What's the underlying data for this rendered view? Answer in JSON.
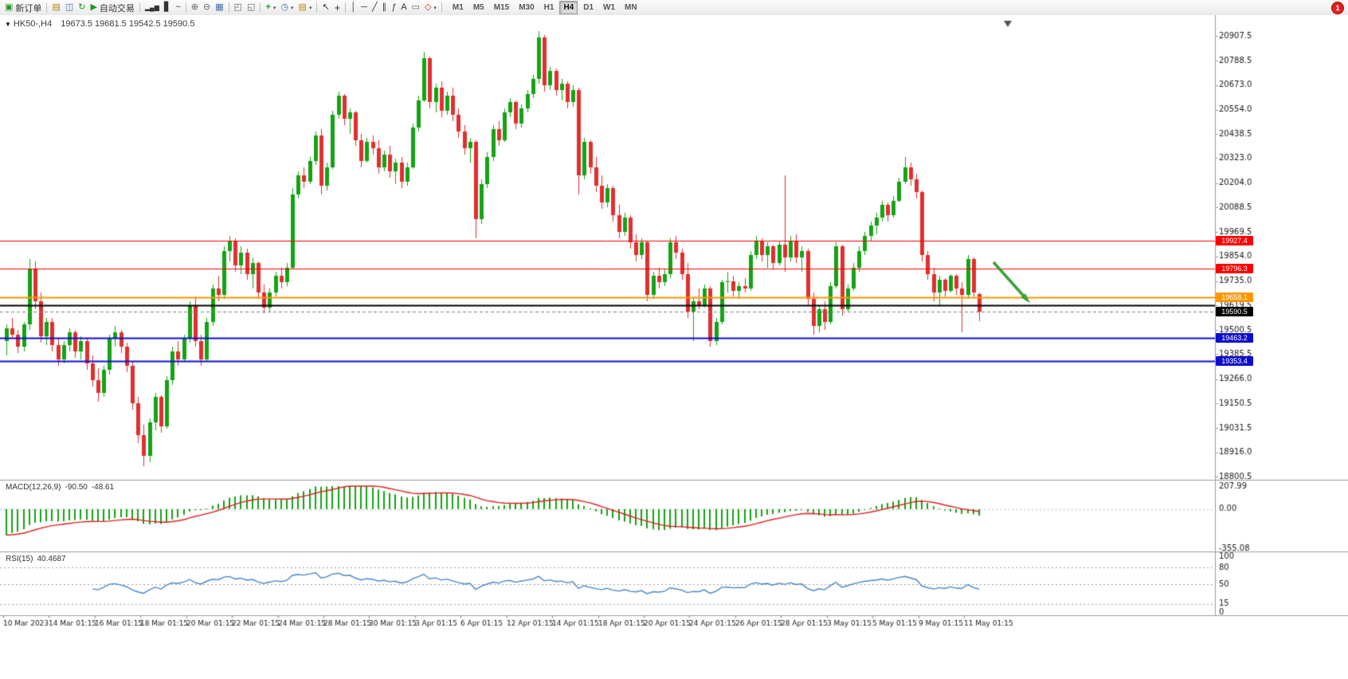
{
  "toolbar": {
    "new_order_label": "新订单",
    "auto_trading_label": "自动交易",
    "timeframes": [
      "M1",
      "M5",
      "M15",
      "M30",
      "H1",
      "H4",
      "D1",
      "W1",
      "MN"
    ],
    "active_timeframe": "H4",
    "notification_badge": "1",
    "icons": {
      "collapse": "▼",
      "new_order": "▣",
      "charts": "▤",
      "profiles": "◫",
      "refresh": "↻",
      "auto_play": "▶",
      "bars_chart": "▂▄▆",
      "candles_chart": "▋",
      "line_chart": "~",
      "zoom_in": "⊕",
      "zoom_out": "⊖",
      "tile_windows": "▦",
      "cascade_windows": "◰",
      "arrange_windows": "◱",
      "indicators": "+",
      "periods": "◷",
      "templates": "▤",
      "cursor": "↖",
      "crosshair": "+",
      "vertical_line": "│",
      "horizontal_line": "─",
      "trendline": "╱",
      "channel": "∥",
      "fibonacci": "ƒ",
      "text": "A",
      "text_label": "▭",
      "shapes": "◇",
      "dropdown": "▾"
    }
  },
  "chart": {
    "title_symbol": "HK50-,H4",
    "title_ohlc": "19673.5 19681.5 19542.5 19590.5",
    "colors": {
      "up": "#14a314",
      "down": "#e02f2f",
      "macd_hist": "#14a314",
      "macd_signal": "#e01f1f",
      "rsi_line": "#4a86c8",
      "bid_line": "#808080",
      "separator": "#9c9c9c",
      "axis_text": "#1a1a1a",
      "arrow": "#39a039"
    },
    "price_axis": {
      "max": 20907.5,
      "min": 18800.5,
      "labels": [
        20907.5,
        20788.5,
        20673.0,
        20554.0,
        20438.5,
        20323.0,
        20204.0,
        20088.5,
        19969.5,
        19854.0,
        19735.0,
        19619.5,
        19500.5,
        19385.5,
        19266.0,
        19150.5,
        19031.5,
        18916.0,
        18800.5
      ]
    },
    "time_axis": {
      "labels": [
        "10 Mar 2023",
        "14 Mar 01:15",
        "16 Mar 01:15",
        "18 Mar 01:15",
        "20 Mar 01:15",
        "22 Mar 01:15",
        "24 Mar 01:15",
        "28 Mar 01:15",
        "30 Mar 01:15",
        "3 Apr 01:15",
        "6 Apr 01:15",
        "12 Apr 01:15",
        "14 Apr 01:15",
        "18 Apr 01:15",
        "20 Apr 01:15",
        "24 Apr 01:15",
        "26 Apr 01:15",
        "28 Apr 01:15",
        "3 May 01:15",
        "5 May 01:15",
        "9 May 01:15",
        "11 May 01:15"
      ]
    },
    "hlines": [
      {
        "price": 19927.4,
        "color": "#ff0000",
        "width": 1,
        "badge": true
      },
      {
        "price": 19796.3,
        "color": "#ff0000",
        "width": 1,
        "badge": true
      },
      {
        "price": 19658.1,
        "color": "#ff9800",
        "width": 2,
        "badge": true
      },
      {
        "price": 19619.5,
        "color": "#000000",
        "width": 2,
        "badge": false
      },
      {
        "price": 19463.2,
        "color": "#0d0dce",
        "width": 2,
        "badge": true
      },
      {
        "price": 19353.4,
        "color": "#0d0dce",
        "width": 2,
        "badge": true
      }
    ],
    "bid": {
      "price": 19590.5,
      "badge_color": "#000000"
    }
  },
  "macd": {
    "label": "MACD(12,26,9)",
    "value_main": "-90.50",
    "value_signal": "-48.61",
    "params": {
      "fast": 12,
      "slow": 26,
      "signal": 9
    },
    "axis": [
      {
        "label": "207.99",
        "value": 207.99
      },
      {
        "label": "0.00",
        "value": 0
      },
      {
        "label": "-355.08",
        "value": -355.08
      }
    ]
  },
  "rsi": {
    "label": "RSI(15)",
    "value": "40.4687",
    "period": 15,
    "levels": [
      80,
      50,
      15
    ],
    "axis": [
      {
        "label": "100",
        "value": 100
      },
      {
        "label": "80",
        "value": 80
      },
      {
        "label": "50",
        "value": 50
      },
      {
        "label": "15",
        "value": 15
      },
      {
        "label": "0",
        "value": 0
      }
    ]
  },
  "chart_data": {
    "type": "candlestick",
    "symbol": "HK50-",
    "timeframe": "H4",
    "last_ohlc": {
      "open": 19673.5,
      "high": 19681.5,
      "low": 19542.5,
      "close": 19590.5
    },
    "candles": [
      [
        19450,
        19530,
        19380,
        19510
      ],
      [
        19510,
        19560,
        19460,
        19480
      ],
      [
        19480,
        19500,
        19390,
        19420
      ],
      [
        19420,
        19540,
        19400,
        19530
      ],
      [
        19530,
        19840,
        19500,
        19790
      ],
      [
        19790,
        19830,
        19600,
        19640
      ],
      [
        19640,
        19680,
        19440,
        19470
      ],
      [
        19470,
        19560,
        19430,
        19540
      ],
      [
        19540,
        19560,
        19400,
        19430
      ],
      [
        19430,
        19460,
        19330,
        19360
      ],
      [
        19360,
        19450,
        19340,
        19430
      ],
      [
        19430,
        19510,
        19400,
        19490
      ],
      [
        19490,
        19500,
        19370,
        19400
      ],
      [
        19400,
        19470,
        19360,
        19450
      ],
      [
        19450,
        19460,
        19310,
        19340
      ],
      [
        19340,
        19380,
        19230,
        19260
      ],
      [
        19260,
        19320,
        19160,
        19200
      ],
      [
        19200,
        19330,
        19180,
        19310
      ],
      [
        19310,
        19480,
        19290,
        19460
      ],
      [
        19460,
        19520,
        19420,
        19490
      ],
      [
        19490,
        19500,
        19390,
        19420
      ],
      [
        19420,
        19440,
        19300,
        19330
      ],
      [
        19330,
        19350,
        19120,
        19150
      ],
      [
        19150,
        19180,
        18960,
        19000
      ],
      [
        19000,
        19050,
        18850,
        18900
      ],
      [
        18900,
        19080,
        18870,
        19060
      ],
      [
        19060,
        19200,
        19020,
        19180
      ],
      [
        19180,
        19190,
        19010,
        19040
      ],
      [
        19040,
        19280,
        19030,
        19260
      ],
      [
        19260,
        19420,
        19240,
        19400
      ],
      [
        19400,
        19450,
        19330,
        19360
      ],
      [
        19360,
        19480,
        19350,
        19460
      ],
      [
        19460,
        19640,
        19440,
        19620
      ],
      [
        19620,
        19660,
        19420,
        19450
      ],
      [
        19450,
        19480,
        19330,
        19360
      ],
      [
        19360,
        19560,
        19350,
        19540
      ],
      [
        19540,
        19720,
        19520,
        19700
      ],
      [
        19700,
        19760,
        19640,
        19670
      ],
      [
        19670,
        19900,
        19650,
        19880
      ],
      [
        19880,
        19950,
        19830,
        19930
      ],
      [
        19930,
        19940,
        19780,
        19810
      ],
      [
        19810,
        19900,
        19770,
        19870
      ],
      [
        19870,
        19890,
        19740,
        19770
      ],
      [
        19770,
        19850,
        19700,
        19820
      ],
      [
        19820,
        19830,
        19650,
        19680
      ],
      [
        19680,
        19720,
        19580,
        19610
      ],
      [
        19610,
        19700,
        19590,
        19680
      ],
      [
        19680,
        19780,
        19660,
        19760
      ],
      [
        19760,
        19800,
        19700,
        19730
      ],
      [
        19730,
        19820,
        19710,
        19800
      ],
      [
        19800,
        20180,
        19790,
        20150
      ],
      [
        20150,
        20260,
        20130,
        20240
      ],
      [
        20240,
        20280,
        20180,
        20210
      ],
      [
        20210,
        20330,
        20200,
        20310
      ],
      [
        20310,
        20450,
        20290,
        20430
      ],
      [
        20430,
        20460,
        20150,
        20190
      ],
      [
        20190,
        20300,
        20170,
        20280
      ],
      [
        20280,
        20550,
        20270,
        20530
      ],
      [
        20530,
        20640,
        20510,
        20620
      ],
      [
        20620,
        20630,
        20480,
        20510
      ],
      [
        20510,
        20560,
        20440,
        20540
      ],
      [
        20540,
        20550,
        20380,
        20410
      ],
      [
        20410,
        20440,
        20280,
        20310
      ],
      [
        20310,
        20420,
        20300,
        20400
      ],
      [
        20400,
        20430,
        20340,
        20370
      ],
      [
        20370,
        20410,
        20250,
        20280
      ],
      [
        20280,
        20360,
        20260,
        20340
      ],
      [
        20340,
        20380,
        20230,
        20260
      ],
      [
        20260,
        20320,
        20200,
        20300
      ],
      [
        20300,
        20330,
        20180,
        20210
      ],
      [
        20210,
        20300,
        20190,
        20280
      ],
      [
        20280,
        20490,
        20270,
        20470
      ],
      [
        20470,
        20620,
        20450,
        20600
      ],
      [
        20600,
        20830,
        20590,
        20800
      ],
      [
        20800,
        20810,
        20560,
        20590
      ],
      [
        20590,
        20680,
        20540,
        20660
      ],
      [
        20660,
        20690,
        20520,
        20550
      ],
      [
        20550,
        20640,
        20530,
        20620
      ],
      [
        20620,
        20660,
        20500,
        20530
      ],
      [
        20530,
        20560,
        20420,
        20450
      ],
      [
        20450,
        20480,
        20340,
        20370
      ],
      [
        20370,
        20420,
        20300,
        20400
      ],
      [
        20400,
        20410,
        19940,
        20030
      ],
      [
        20030,
        20220,
        20010,
        20200
      ],
      [
        20200,
        20350,
        20180,
        20330
      ],
      [
        20330,
        20480,
        20310,
        20460
      ],
      [
        20460,
        20500,
        20380,
        20410
      ],
      [
        20410,
        20560,
        20400,
        20540
      ],
      [
        20540,
        20610,
        20520,
        20590
      ],
      [
        20590,
        20600,
        20460,
        20490
      ],
      [
        20490,
        20580,
        20470,
        20560
      ],
      [
        20560,
        20650,
        20540,
        20630
      ],
      [
        20630,
        20720,
        20610,
        20700
      ],
      [
        20700,
        20930,
        20680,
        20900
      ],
      [
        20900,
        20910,
        20640,
        20670
      ],
      [
        20670,
        20760,
        20650,
        20740
      ],
      [
        20740,
        20750,
        20620,
        20650
      ],
      [
        20650,
        20700,
        20600,
        20680
      ],
      [
        20680,
        20690,
        20560,
        20590
      ],
      [
        20590,
        20670,
        20570,
        20650
      ],
      [
        20650,
        20660,
        20150,
        20240
      ],
      [
        20240,
        20420,
        20220,
        20400
      ],
      [
        20400,
        20410,
        20250,
        20280
      ],
      [
        20280,
        20330,
        20160,
        20190
      ],
      [
        20190,
        20240,
        20080,
        20110
      ],
      [
        20110,
        20200,
        20090,
        20180
      ],
      [
        20180,
        20190,
        20020,
        20050
      ],
      [
        20050,
        20100,
        19940,
        19970
      ],
      [
        19970,
        20060,
        19950,
        20040
      ],
      [
        20040,
        20050,
        19890,
        19920
      ],
      [
        19920,
        19960,
        19830,
        19860
      ],
      [
        19860,
        19940,
        19840,
        19920
      ],
      [
        19920,
        19930,
        19640,
        19670
      ],
      [
        19670,
        19780,
        19650,
        19760
      ],
      [
        19760,
        19800,
        19700,
        19730
      ],
      [
        19730,
        19790,
        19710,
        19770
      ],
      [
        19770,
        19940,
        19750,
        19920
      ],
      [
        19920,
        19950,
        19840,
        19870
      ],
      [
        19870,
        19890,
        19740,
        19770
      ],
      [
        19770,
        19820,
        19560,
        19590
      ],
      [
        19590,
        19660,
        19450,
        19640
      ],
      [
        19640,
        19700,
        19600,
        19620
      ],
      [
        19620,
        19720,
        19610,
        19700
      ],
      [
        19700,
        19710,
        19420,
        19450
      ],
      [
        19450,
        19560,
        19430,
        19540
      ],
      [
        19540,
        19740,
        19530,
        19730
      ],
      [
        19730,
        19780,
        19680,
        19735
      ],
      [
        19735,
        19760,
        19660,
        19690
      ],
      [
        19690,
        19730,
        19650,
        19710
      ],
      [
        19710,
        19750,
        19680,
        19700
      ],
      [
        19700,
        19880,
        19690,
        19860
      ],
      [
        19860,
        19950,
        19840,
        19930
      ],
      [
        19930,
        19940,
        19830,
        19860
      ],
      [
        19860,
        19920,
        19800,
        19900
      ],
      [
        19900,
        19910,
        19790,
        19820
      ],
      [
        19820,
        19930,
        19810,
        19910
      ],
      [
        19910,
        20240,
        19780,
        19850
      ],
      [
        19850,
        19950,
        19830,
        19930
      ],
      [
        19930,
        19960,
        19820,
        19850
      ],
      [
        19850,
        19900,
        19780,
        19880
      ],
      [
        19880,
        19890,
        19620,
        19650
      ],
      [
        19650,
        19680,
        19480,
        19520
      ],
      [
        19520,
        19620,
        19490,
        19600
      ],
      [
        19600,
        19640,
        19500,
        19540
      ],
      [
        19540,
        19730,
        19530,
        19710
      ],
      [
        19710,
        19920,
        19700,
        19900
      ],
      [
        19900,
        19910,
        19570,
        19600
      ],
      [
        19600,
        19720,
        19590,
        19700
      ],
      [
        19700,
        19820,
        19690,
        19800
      ],
      [
        19800,
        19900,
        19780,
        19880
      ],
      [
        19880,
        19970,
        19860,
        19950
      ],
      [
        19950,
        20020,
        19930,
        20000
      ],
      [
        20000,
        20060,
        19960,
        20040
      ],
      [
        20040,
        20120,
        20020,
        20100
      ],
      [
        20100,
        20110,
        20020,
        20050
      ],
      [
        20050,
        20140,
        20040,
        20120
      ],
      [
        20120,
        20230,
        20110,
        20210
      ],
      [
        20210,
        20330,
        20200,
        20280
      ],
      [
        20280,
        20300,
        20190,
        20220
      ],
      [
        20220,
        20250,
        20130,
        20160
      ],
      [
        20160,
        20170,
        19830,
        19860
      ],
      [
        19860,
        19880,
        19740,
        19770
      ],
      [
        19770,
        19800,
        19640,
        19680
      ],
      [
        19680,
        19760,
        19620,
        19740
      ],
      [
        19740,
        19750,
        19660,
        19690
      ],
      [
        19690,
        19770,
        19680,
        19760
      ],
      [
        19760,
        19770,
        19670,
        19700
      ],
      [
        19700,
        19730,
        19490,
        19670
      ],
      [
        19670,
        19860,
        19650,
        19840
      ],
      [
        19840,
        19850,
        19660,
        19680
      ],
      [
        19673.5,
        19681.5,
        19542.5,
        19590.5
      ]
    ]
  }
}
